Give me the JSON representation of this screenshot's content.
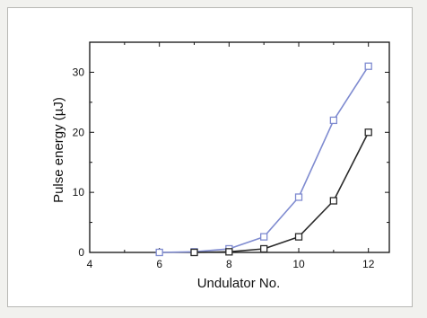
{
  "chart_data": {
    "type": "line",
    "title": "",
    "xlabel": "Undulator No.",
    "ylabel": "Pulse energy (µJ)",
    "xlim": [
      4,
      12.6
    ],
    "ylim": [
      0,
      35
    ],
    "x_ticks": [
      4,
      6,
      8,
      10,
      12
    ],
    "y_ticks": [
      0,
      10,
      20,
      30
    ],
    "grid": false,
    "legend": "none",
    "marker": "open-square",
    "series": [
      {
        "color": "#7f8bd0",
        "x": [
          6,
          7,
          8,
          9,
          10,
          11,
          12
        ],
        "y": [
          0,
          0.1,
          0.6,
          2.6,
          9.2,
          22.0,
          31.0
        ]
      },
      {
        "color": "#2a2a2a",
        "x": [
          7,
          8,
          9,
          10,
          11,
          12
        ],
        "y": [
          0,
          0.1,
          0.6,
          2.6,
          8.6,
          20.0
        ]
      }
    ]
  }
}
